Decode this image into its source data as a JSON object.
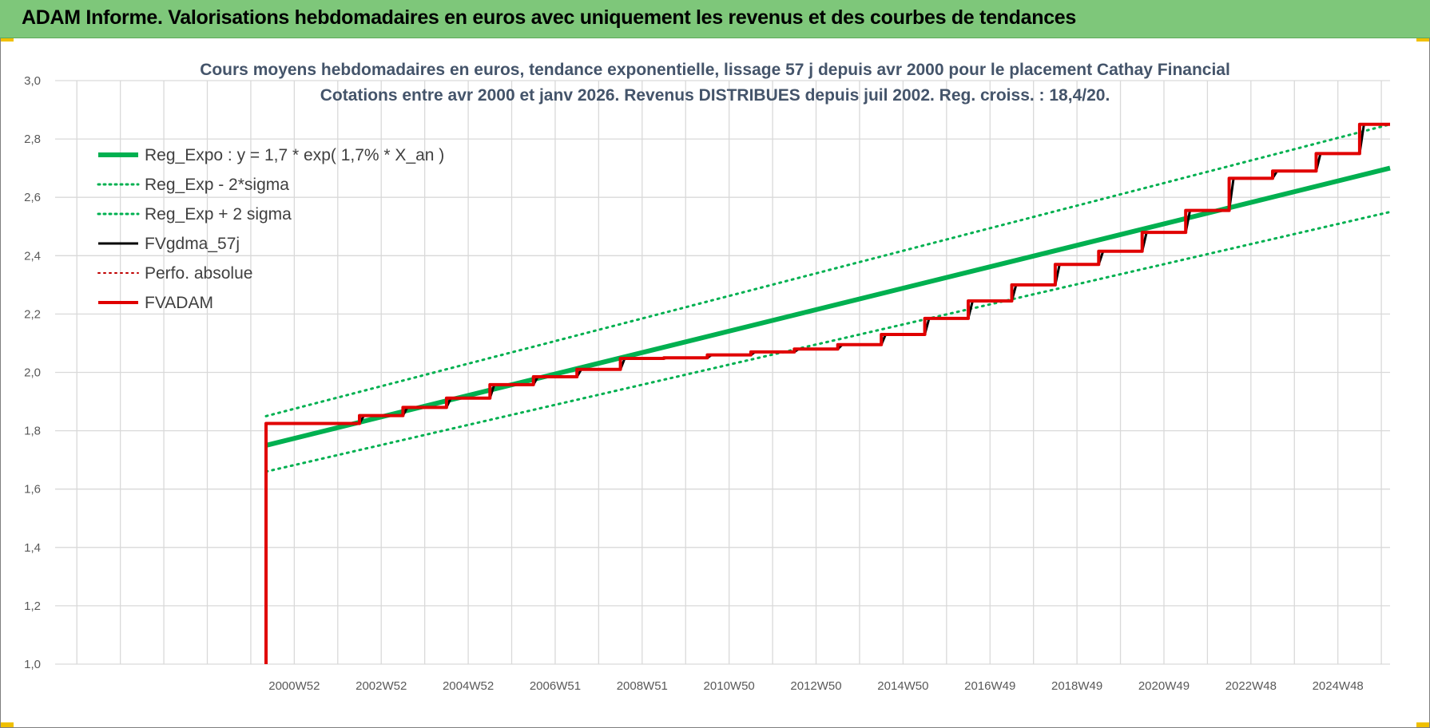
{
  "banner": {
    "title": "ADAM Informe. Valorisations hebdomadaires en euros avec uniquement les revenus et des courbes de tendances",
    "color": "#7ec77a"
  },
  "chart_data": {
    "type": "line",
    "title": [
      "Cours moyens hebdomadaires en euros, tendance exponentielle, lissage 57 j depuis avr 2000 pour le placement Cathay Financial",
      "Cotations entre avr 2000 et janv 2026.  Revenus DISTRIBUES depuis juil 2002.  Reg. croiss. : 18,4/20."
    ],
    "xlabel": "",
    "ylabel": "",
    "ylim": [
      1.0,
      3.0
    ],
    "yticks": [
      "1,0",
      "1,2",
      "1,4",
      "1,6",
      "1,8",
      "2,0",
      "2,2",
      "2,4",
      "2,6",
      "2,8",
      "3,0"
    ],
    "xlim": [
      1995.5,
      2026.2
    ],
    "xticks": [
      {
        "label": "2000W52",
        "x": 2001.0
      },
      {
        "label": "2002W52",
        "x": 2003.0
      },
      {
        "label": "2004W52",
        "x": 2005.0
      },
      {
        "label": "2006W51",
        "x": 2007.0
      },
      {
        "label": "2008W51",
        "x": 2009.0
      },
      {
        "label": "2010W50",
        "x": 2011.0
      },
      {
        "label": "2012W50",
        "x": 2013.0
      },
      {
        "label": "2014W50",
        "x": 2015.0
      },
      {
        "label": "2016W49",
        "x": 2017.0
      },
      {
        "label": "2018W49",
        "x": 2019.0
      },
      {
        "label": "2020W49",
        "x": 2021.0
      },
      {
        "label": "2022W48",
        "x": 2023.0
      },
      {
        "label": "2024W48",
        "x": 2025.0
      }
    ],
    "grid": true,
    "legend_position": "top-left",
    "series": [
      {
        "name": "Reg_Expo : y = 1,7 * exp( 1,7% *  X_an )",
        "color": "#00b050",
        "style": "solid",
        "width": 6,
        "x": [
          2000.35,
          2026.2
        ],
        "y": [
          1.75,
          2.7
        ]
      },
      {
        "name": "Reg_Exp - 2*sigma",
        "color": "#00b050",
        "style": "dotted",
        "width": 3,
        "x": [
          2000.35,
          2026.2
        ],
        "y": [
          1.66,
          2.55
        ]
      },
      {
        "name": "Reg_Exp + 2 sigma",
        "color": "#00b050",
        "style": "dotted",
        "width": 3,
        "x": [
          2000.35,
          2026.2
        ],
        "y": [
          1.85,
          2.85
        ]
      },
      {
        "name": "FVgdma_57j",
        "color": "#000000",
        "style": "solid",
        "width": 3,
        "x": [
          2000.35,
          2002.5,
          2002.6,
          2003.5,
          2003.6,
          2004.5,
          2004.6,
          2005.5,
          2005.6,
          2006.5,
          2006.6,
          2007.5,
          2007.6,
          2008.5,
          2008.6,
          2009.5,
          2009.6,
          2010.5,
          2010.6,
          2011.5,
          2011.6,
          2012.5,
          2012.6,
          2013.5,
          2013.6,
          2014.5,
          2014.6,
          2015.5,
          2015.6,
          2016.5,
          2016.6,
          2017.5,
          2017.6,
          2018.5,
          2018.6,
          2019.5,
          2019.6,
          2020.5,
          2020.6,
          2021.5,
          2021.6,
          2022.5,
          2022.6,
          2023.5,
          2023.6,
          2024.5,
          2024.6,
          2025.5,
          2025.6,
          2026.2
        ],
        "y": [
          1.825,
          1.825,
          1.852,
          1.852,
          1.88,
          1.88,
          1.912,
          1.912,
          1.958,
          1.958,
          1.985,
          1.985,
          2.01,
          2.01,
          2.048,
          2.048,
          2.05,
          2.05,
          2.06,
          2.06,
          2.07,
          2.07,
          2.08,
          2.08,
          2.095,
          2.095,
          2.13,
          2.13,
          2.185,
          2.185,
          2.245,
          2.245,
          2.3,
          2.3,
          2.37,
          2.37,
          2.415,
          2.415,
          2.48,
          2.48,
          2.555,
          2.555,
          2.665,
          2.665,
          2.69,
          2.69,
          2.75,
          2.75,
          2.85,
          2.85
        ]
      },
      {
        "name": "Perfo. absolue",
        "color": "#c00000",
        "style": "dotted",
        "width": 2,
        "x": [],
        "y": []
      },
      {
        "name": "FVADAM",
        "color": "#e00000",
        "style": "solid",
        "width": 4,
        "x": [
          2000.35,
          2000.35,
          2002.5,
          2002.5,
          2003.5,
          2003.5,
          2004.5,
          2004.5,
          2005.5,
          2005.5,
          2006.5,
          2006.5,
          2007.5,
          2007.5,
          2008.5,
          2008.5,
          2009.5,
          2009.5,
          2010.5,
          2010.5,
          2011.5,
          2011.5,
          2012.5,
          2012.5,
          2013.5,
          2013.5,
          2014.5,
          2014.5,
          2015.5,
          2015.5,
          2016.5,
          2016.5,
          2017.5,
          2017.5,
          2018.5,
          2018.5,
          2019.5,
          2019.5,
          2020.5,
          2020.5,
          2021.5,
          2021.5,
          2022.5,
          2022.5,
          2023.5,
          2023.5,
          2024.5,
          2024.5,
          2025.5,
          2025.5,
          2026.2
        ],
        "y": [
          1.0,
          1.825,
          1.825,
          1.852,
          1.852,
          1.88,
          1.88,
          1.912,
          1.912,
          1.958,
          1.958,
          1.985,
          1.985,
          2.01,
          2.01,
          2.048,
          2.048,
          2.05,
          2.05,
          2.06,
          2.06,
          2.07,
          2.07,
          2.08,
          2.08,
          2.095,
          2.095,
          2.13,
          2.13,
          2.185,
          2.185,
          2.245,
          2.245,
          2.3,
          2.3,
          2.37,
          2.37,
          2.415,
          2.415,
          2.48,
          2.48,
          2.555,
          2.555,
          2.665,
          2.665,
          2.69,
          2.69,
          2.75,
          2.75,
          2.85,
          2.85
        ]
      }
    ]
  }
}
